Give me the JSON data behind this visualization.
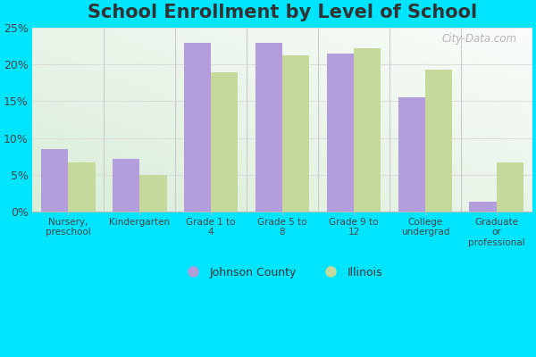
{
  "title": "School Enrollment by Level of School",
  "categories": [
    "Nursery,\npreschool",
    "Kindergarten",
    "Grade 1 to\n4",
    "Grade 5 to\n8",
    "Grade 9 to\n12",
    "College\nundergrad",
    "Graduate\nor\nprofessional"
  ],
  "johnson_county": [
    8.5,
    7.1,
    23.0,
    23.0,
    21.5,
    15.5,
    1.3
  ],
  "illinois": [
    6.6,
    4.9,
    19.0,
    21.3,
    22.2,
    19.3,
    6.6
  ],
  "johnson_color": "#b39ddb",
  "illinois_color": "#c5d99b",
  "bg_top_right": "#f0f7ee",
  "bg_bottom_left": "#d4ecd4",
  "outer_background": "#00e5ff",
  "title_fontsize": 15,
  "ylim": [
    0,
    25
  ],
  "yticks": [
    0,
    5,
    10,
    15,
    20,
    25
  ],
  "ytick_labels": [
    "0%",
    "5%",
    "10%",
    "15%",
    "20%",
    "25%"
  ],
  "legend_labels": [
    "Johnson County",
    "Illinois"
  ],
  "bar_width": 0.38,
  "grid_color": "#cccccc",
  "watermark": "City-Data.com"
}
